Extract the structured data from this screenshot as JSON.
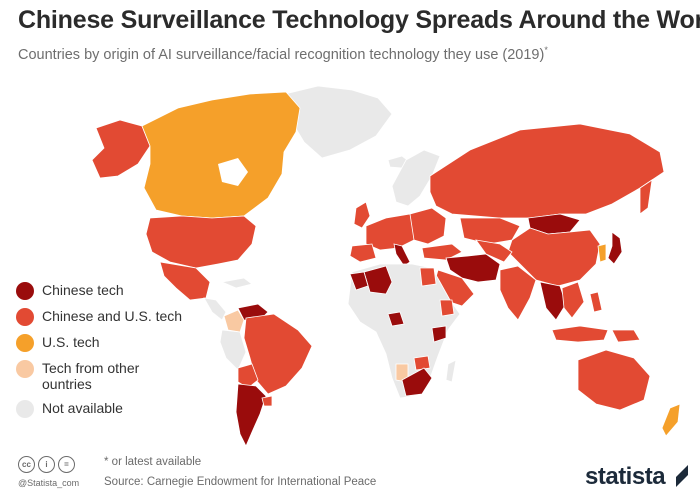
{
  "header": {
    "title": "Chinese Surveillance Technology Spreads Around the World",
    "subtitle": "Countries by origin of AI surveillance/facial recognition technology they use (2019)",
    "subtitle_note_mark": "*"
  },
  "legend": {
    "items": [
      {
        "label": "Chinese tech",
        "color": "#9a0c0c"
      },
      {
        "label": "Chinese and U.S. tech",
        "color": "#e24a33"
      },
      {
        "label": "U.S. tech",
        "color": "#f5a02a"
      },
      {
        "label": "Tech from other ountries",
        "color": "#f9c9a2"
      },
      {
        "label": "Not available",
        "color": "#e9e9e9"
      }
    ]
  },
  "colors": {
    "chinese": "#9a0c0c",
    "both": "#e24a33",
    "us": "#f5a02a",
    "other": "#f9c9a2",
    "na": "#e9e9e9"
  },
  "footer": {
    "cc_icons": [
      "cc",
      "i",
      "="
    ],
    "handle": "@Statista_com",
    "note": "* or latest available",
    "source": "Source: Carnegie Endowment for International Peace",
    "brand": "statista"
  }
}
